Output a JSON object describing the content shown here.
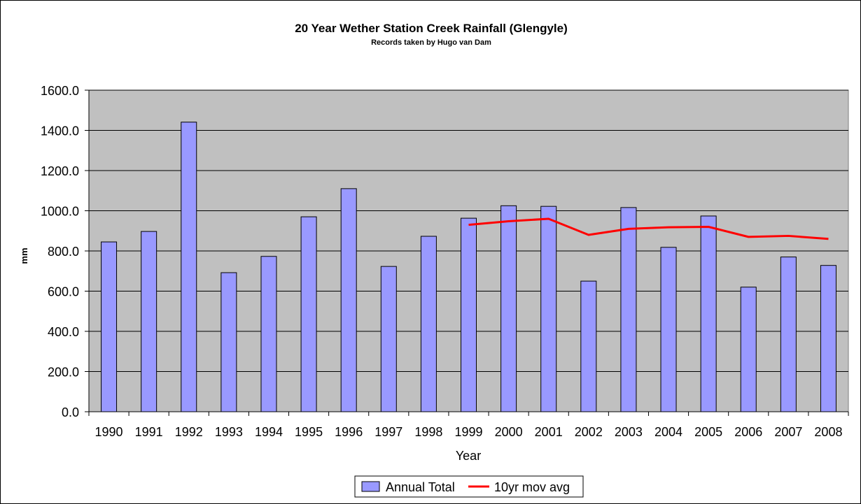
{
  "chart_data": {
    "type": "bar",
    "title": "20 Year Wether Station Creek Rainfall (Glengyle)",
    "subtitle": "Records taken by Hugo van Dam",
    "xlabel": "Year",
    "ylabel": "mm",
    "ylim": [
      0,
      1600
    ],
    "yticks": [
      "0.0",
      "200.0",
      "400.0",
      "600.0",
      "800.0",
      "1000.0",
      "1200.0",
      "1400.0",
      "1600.0"
    ],
    "categories": [
      "1990",
      "1991",
      "1992",
      "1993",
      "1994",
      "1995",
      "1996",
      "1997",
      "1998",
      "1999",
      "2000",
      "2001",
      "2002",
      "2003",
      "2004",
      "2005",
      "2006",
      "2007",
      "2008"
    ],
    "grid": true,
    "legend_position": "bottom",
    "series": [
      {
        "name": "Annual Total",
        "type": "bar",
        "color": "#9999ff",
        "values": [
          845,
          897,
          1441,
          692,
          773,
          970,
          1110,
          723,
          873,
          963,
          1025,
          1022,
          650,
          1016,
          818,
          974,
          620,
          770,
          728
        ]
      },
      {
        "name": "10yr mov avg",
        "type": "line",
        "color": "#ff0000",
        "values": [
          null,
          null,
          null,
          null,
          null,
          null,
          null,
          null,
          null,
          930,
          948,
          960,
          880,
          910,
          918,
          920,
          870,
          875,
          860
        ]
      }
    ],
    "colors": {
      "plot_background": "#c0c0c0",
      "bar_border": "#000000",
      "gridline": "#000000"
    }
  }
}
